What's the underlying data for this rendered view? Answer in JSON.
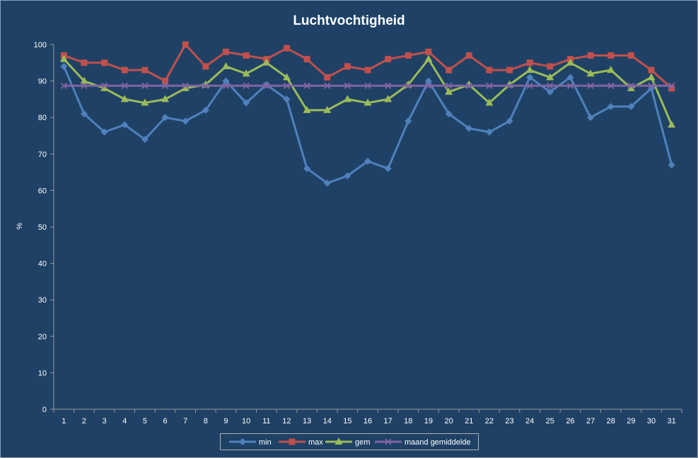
{
  "chart_data": {
    "type": "line",
    "title": "Luchtvochtigheid",
    "xlabel": "",
    "ylabel": "%",
    "ylim": [
      0,
      100
    ],
    "yticks": [
      0,
      10,
      20,
      30,
      40,
      50,
      60,
      70,
      80,
      90,
      100
    ],
    "categories": [
      "1",
      "2",
      "3",
      "4",
      "5",
      "6",
      "7",
      "8",
      "9",
      "10",
      "11",
      "12",
      "13",
      "14",
      "15",
      "16",
      "17",
      "18",
      "19",
      "20",
      "21",
      "22",
      "23",
      "24",
      "25",
      "26",
      "27",
      "28",
      "29",
      "30",
      "31"
    ],
    "legend_position": "bottom",
    "grid": false,
    "series": [
      {
        "name": "min",
        "color": "#4f81bd",
        "marker": "diamond",
        "values": [
          94,
          81,
          76,
          78,
          74,
          80,
          79,
          82,
          90,
          84,
          89,
          85,
          66,
          62,
          64,
          68,
          66,
          79,
          90,
          81,
          77,
          76,
          79,
          91,
          87,
          91,
          80,
          83,
          83,
          88,
          67
        ]
      },
      {
        "name": "max",
        "color": "#c0504d",
        "marker": "square",
        "values": [
          97,
          95,
          95,
          93,
          93,
          90,
          100,
          94,
          98,
          97,
          96,
          99,
          96,
          91,
          94,
          93,
          96,
          97,
          98,
          93,
          97,
          93,
          93,
          95,
          94,
          96,
          97,
          97,
          97,
          93,
          88
        ]
      },
      {
        "name": "gem",
        "color": "#9bbb59",
        "marker": "triangle",
        "values": [
          96,
          90,
          88,
          85,
          84,
          85,
          88,
          89,
          94,
          92,
          95,
          91,
          82,
          82,
          85,
          84,
          85,
          89,
          96,
          87,
          89,
          84,
          89,
          93,
          91,
          95,
          92,
          93,
          88,
          91,
          78
        ]
      },
      {
        "name": "maand gemiddelde",
        "color": "#8064a2",
        "marker": "x",
        "values": [
          88.7,
          88.7,
          88.7,
          88.7,
          88.7,
          88.7,
          88.7,
          88.7,
          88.7,
          88.7,
          88.7,
          88.7,
          88.7,
          88.7,
          88.7,
          88.7,
          88.7,
          88.7,
          88.7,
          88.7,
          88.7,
          88.7,
          88.7,
          88.7,
          88.7,
          88.7,
          88.7,
          88.7,
          88.7,
          88.7,
          88.7
        ]
      }
    ]
  }
}
